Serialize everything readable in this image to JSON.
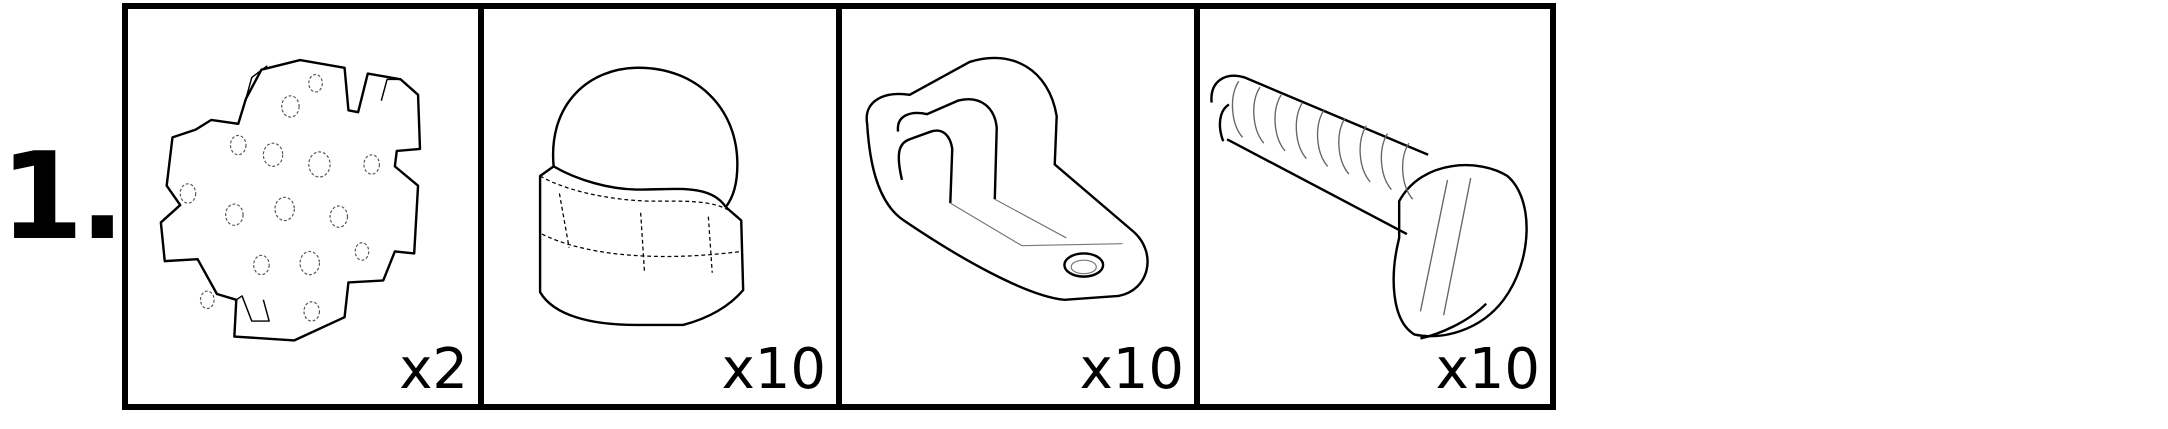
{
  "step": {
    "number": "1."
  },
  "parts": [
    {
      "icon": "mounting-disc-icon",
      "quantity": "x2"
    },
    {
      "icon": "acorn-nut-icon",
      "quantity": "x10"
    },
    {
      "icon": "cable-clamp-icon",
      "quantity": "x10"
    },
    {
      "icon": "slotted-screw-icon",
      "quantity": "x10"
    }
  ]
}
